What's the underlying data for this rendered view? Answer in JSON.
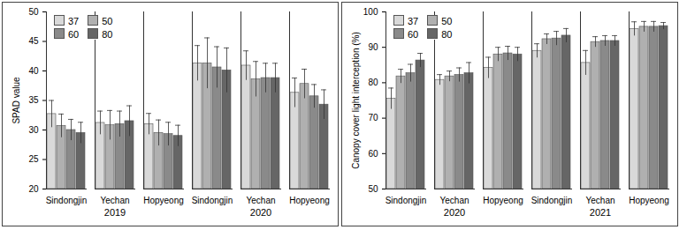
{
  "chart_data": [
    {
      "type": "bar",
      "y_label": "SPAD value",
      "categories": [
        "Sindongjin",
        "Yechan",
        "Hopyeong",
        "Sindongjin",
        "Yechan",
        "Hopyeong"
      ],
      "groups": [
        "2019",
        "2019",
        "2019",
        "2020",
        "2020",
        "2020"
      ],
      "series": [
        {
          "name": "37",
          "color": "#d9d9d9",
          "values": [
            32.7,
            31.2,
            31.0,
            41.3,
            40.9,
            36.3
          ],
          "errors": [
            2.3,
            2.0,
            1.8,
            3.0,
            2.5,
            2.5
          ]
        },
        {
          "name": "50",
          "color": "#b0b0b0",
          "values": [
            30.7,
            30.8,
            29.5,
            41.3,
            38.6,
            37.8
          ],
          "errors": [
            2.0,
            2.5,
            2.2,
            4.3,
            3.0,
            2.5
          ]
        },
        {
          "name": "60",
          "color": "#8a8a8a",
          "values": [
            30.0,
            31.0,
            29.3,
            40.6,
            38.8,
            35.7
          ],
          "errors": [
            1.8,
            2.2,
            2.0,
            3.5,
            2.5,
            2.0
          ]
        },
        {
          "name": "80",
          "color": "#666666",
          "values": [
            29.5,
            31.5,
            29.0,
            40.1,
            38.8,
            34.3
          ],
          "errors": [
            1.8,
            2.6,
            1.8,
            3.8,
            2.5,
            2.5
          ]
        }
      ],
      "ylim": [
        20,
        50
      ],
      "yticks": [
        20,
        25,
        30,
        35,
        40,
        45,
        50
      ],
      "legend": "upper left"
    },
    {
      "type": "bar",
      "y_label": "Canopy cover light interception (%)",
      "categories": [
        "Sindongjin",
        "Yechan",
        "Hopyeong",
        "Sindongjin",
        "Yechan",
        "Hopyeong"
      ],
      "groups": [
        "2020",
        "2020",
        "2020",
        "2021",
        "2021",
        "2021"
      ],
      "series": [
        {
          "name": "37",
          "color": "#d9d9d9",
          "values": [
            75.5,
            80.8,
            84.2,
            89.0,
            85.6,
            95.2
          ],
          "errors": [
            3.0,
            1.5,
            3.0,
            2.0,
            3.5,
            2.0
          ]
        },
        {
          "name": "50",
          "color": "#b0b0b0",
          "values": [
            81.8,
            81.8,
            88.0,
            92.3,
            91.5,
            95.8
          ],
          "errors": [
            2.0,
            1.5,
            2.0,
            1.5,
            1.5,
            1.5
          ]
        },
        {
          "name": "60",
          "color": "#8a8a8a",
          "values": [
            82.7,
            82.2,
            88.3,
            92.5,
            91.8,
            95.8
          ],
          "errors": [
            2.5,
            2.0,
            2.0,
            2.0,
            1.5,
            1.5
          ]
        },
        {
          "name": "80",
          "color": "#666666",
          "values": [
            86.3,
            82.7,
            88.0,
            93.3,
            91.8,
            96.0
          ],
          "errors": [
            2.0,
            3.0,
            2.0,
            2.0,
            1.5,
            1.0
          ]
        }
      ],
      "ylim": [
        50,
        100
      ],
      "yticks": [
        50,
        60,
        70,
        80,
        90,
        100
      ],
      "legend": "upper left"
    }
  ]
}
